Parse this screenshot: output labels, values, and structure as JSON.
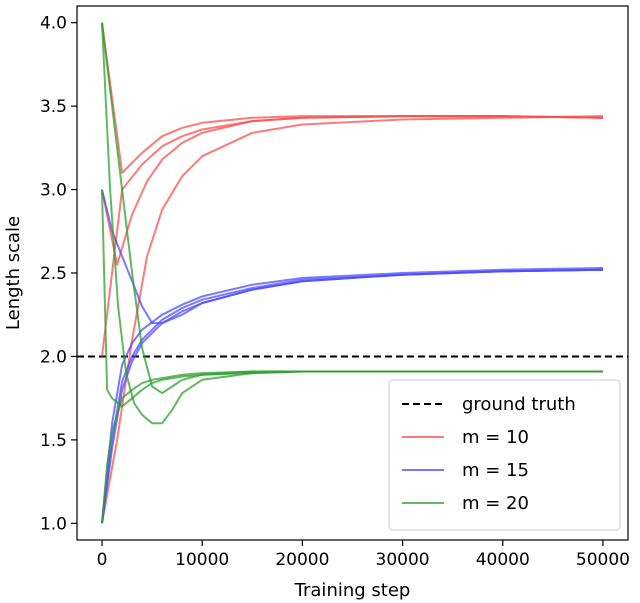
{
  "chart_data": {
    "type": "line",
    "title": "",
    "xlabel": "Training step",
    "ylabel": "Length scale",
    "xlim": [
      -2500,
      52500
    ],
    "ylim": [
      0.9,
      4.1
    ],
    "xticks": [
      0,
      10000,
      20000,
      30000,
      40000,
      50000
    ],
    "xtick_labels": [
      "0",
      "10000",
      "20000",
      "30000",
      "40000",
      "50000"
    ],
    "yticks": [
      1.0,
      1.5,
      2.0,
      2.5,
      3.0,
      3.5,
      4.0
    ],
    "ytick_labels": [
      "1.0",
      "1.5",
      "2.0",
      "2.5",
      "3.0",
      "3.5",
      "4.0"
    ],
    "grid": false,
    "legend_position": "lower-right",
    "reference_line": {
      "name": "ground truth",
      "y": 2.0,
      "color": "#000000",
      "style": "dashed"
    },
    "series": [
      {
        "name": "m = 10",
        "color": "#ff4c4c",
        "runs": [
          {
            "x": [
              0,
              2000,
              4000,
              6000,
              8000,
              10000,
              15000,
              20000,
              30000,
              40000,
              50000
            ],
            "y": [
              4.0,
              3.1,
              3.22,
              3.32,
              3.37,
              3.4,
              3.43,
              3.44,
              3.44,
              3.44,
              3.43
            ]
          },
          {
            "x": [
              0,
              2000,
              4000,
              6000,
              8000,
              10000,
              15000,
              20000,
              30000,
              40000,
              50000
            ],
            "y": [
              2.0,
              3.0,
              3.15,
              3.26,
              3.32,
              3.36,
              3.41,
              3.43,
              3.44,
              3.44,
              3.43
            ]
          },
          {
            "x": [
              0,
              1500,
              3000,
              4500,
              6000,
              8000,
              10000,
              15000,
              20000,
              30000,
              40000,
              50000
            ],
            "y": [
              1.0,
              1.5,
              2.1,
              2.6,
              2.88,
              3.08,
              3.2,
              3.34,
              3.39,
              3.42,
              3.43,
              3.44
            ]
          },
          {
            "x": [
              0,
              1500,
              3000,
              4500,
              6000,
              8000,
              10000,
              15000,
              20000,
              30000,
              40000,
              50000
            ],
            "y": [
              3.0,
              2.55,
              2.85,
              3.05,
              3.18,
              3.28,
              3.34,
              3.41,
              3.43,
              3.44,
              3.44,
              3.43
            ]
          }
        ]
      },
      {
        "name": "m = 15",
        "color": "#4c4cff",
        "runs": [
          {
            "x": [
              0,
              1000,
              2000,
              3000,
              4000,
              5000,
              6000,
              8000,
              10000,
              15000,
              20000,
              30000,
              40000,
              50000
            ],
            "y": [
              3.0,
              2.75,
              2.6,
              2.45,
              2.3,
              2.2,
              2.2,
              2.25,
              2.32,
              2.4,
              2.45,
              2.49,
              2.51,
              2.52
            ]
          },
          {
            "x": [
              0,
              1000,
              2000,
              3000,
              4000,
              6000,
              8000,
              10000,
              15000,
              20000,
              30000,
              40000,
              50000
            ],
            "y": [
              1.0,
              1.5,
              1.85,
              2.0,
              2.1,
              2.22,
              2.29,
              2.34,
              2.41,
              2.46,
              2.49,
              2.51,
              2.52
            ]
          },
          {
            "x": [
              0,
              1000,
              2000,
              3000,
              4000,
              6000,
              8000,
              10000,
              15000,
              20000,
              30000,
              40000,
              50000
            ],
            "y": [
              1.0,
              1.6,
              1.95,
              2.08,
              2.16,
              2.25,
              2.31,
              2.36,
              2.43,
              2.47,
              2.5,
              2.52,
              2.53
            ]
          },
          {
            "x": [
              0,
              1000,
              2000,
              3000,
              4000,
              6000,
              8000,
              10000,
              15000,
              20000,
              30000,
              40000,
              50000
            ],
            "y": [
              1.0,
              1.45,
              1.8,
              1.97,
              2.08,
              2.2,
              2.27,
              2.32,
              2.4,
              2.45,
              2.49,
              2.51,
              2.52
            ]
          }
        ]
      },
      {
        "name": "m = 20",
        "color": "#2ca02c",
        "runs": [
          {
            "x": [
              0,
              1000,
              2000,
              3000,
              4000,
              5000,
              6000,
              7000,
              8000,
              10000,
              15000,
              20000,
              30000,
              40000,
              50000
            ],
            "y": [
              4.0,
              3.5,
              3.0,
              2.5,
              2.05,
              1.82,
              1.78,
              1.82,
              1.86,
              1.89,
              1.91,
              1.91,
              1.91,
              1.91,
              1.91
            ]
          },
          {
            "x": [
              0,
              800,
              1600,
              2400,
              3200,
              4000,
              5000,
              6000,
              7000,
              8000,
              10000,
              15000,
              20000,
              30000,
              40000,
              50000
            ],
            "y": [
              4.0,
              3.0,
              2.3,
              1.9,
              1.72,
              1.65,
              1.6,
              1.6,
              1.68,
              1.78,
              1.86,
              1.9,
              1.91,
              1.91,
              1.91,
              1.91
            ]
          },
          {
            "x": [
              0,
              500,
              1000,
              2000,
              3000,
              4000,
              5000,
              6000,
              8000,
              10000,
              15000,
              20000,
              30000,
              40000,
              50000
            ],
            "y": [
              3.0,
              1.8,
              1.75,
              1.7,
              1.75,
              1.8,
              1.84,
              1.86,
              1.88,
              1.89,
              1.9,
              1.91,
              1.91,
              1.91,
              1.91
            ]
          },
          {
            "x": [
              0,
              500,
              1000,
              2000,
              3000,
              4000,
              5000,
              6000,
              8000,
              10000,
              15000,
              20000,
              30000,
              40000,
              50000
            ],
            "y": [
              1.0,
              1.35,
              1.55,
              1.75,
              1.8,
              1.84,
              1.86,
              1.87,
              1.89,
              1.9,
              1.91,
              1.91,
              1.91,
              1.91,
              1.91
            ]
          }
        ]
      }
    ]
  }
}
